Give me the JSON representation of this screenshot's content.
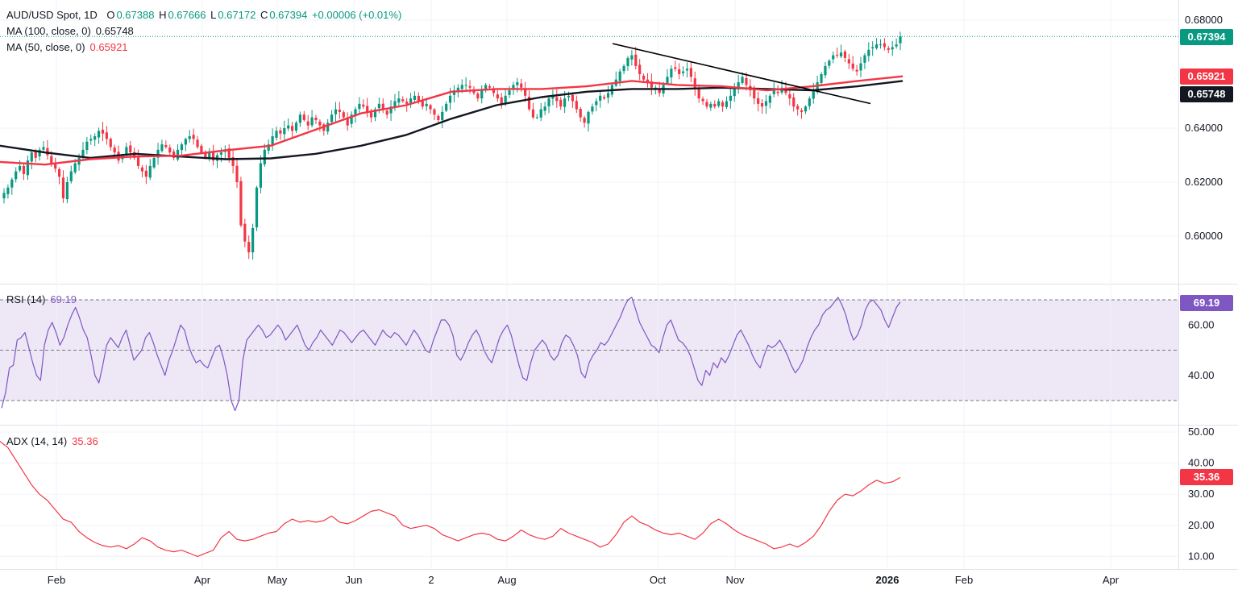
{
  "header": {
    "symbol": "AUD/USD Spot, 1D",
    "o_label": "O",
    "o": "0.67388",
    "h_label": "H",
    "h": "0.67666",
    "l_label": "L",
    "l": "0.67172",
    "c_label": "C",
    "c": "0.67394",
    "change": "+0.00006 (+0.01%)"
  },
  "indicators": {
    "ma100_label": "MA (100, close, 0)",
    "ma100_value": "0.65748",
    "ma50_label": "MA (50, close, 0)",
    "ma50_value": "0.65921",
    "rsi_label": "RSI (14)",
    "rsi_value": "69.19",
    "adx_label": "ADX (14, 14)",
    "adx_value": "35.36"
  },
  "badges": {
    "price": "0.67394",
    "ma50": "0.65921",
    "ma100": "0.65748",
    "rsi": "69.19",
    "adx": "35.36"
  },
  "colors": {
    "up": "#089981",
    "down": "#f23645",
    "ma50": "#f23645",
    "ma100": "#131722",
    "rsi": "#7e57c2",
    "rsi_band": "#ede7f6",
    "adx": "#f23645",
    "trendline": "#000000"
  },
  "chart_data": [
    {
      "type": "candlestick",
      "title": "AUD/USD Spot, 1D",
      "x_tick_labels": [
        "Feb",
        "Apr",
        "May",
        "Jun",
        "2",
        "Aug",
        "Oct",
        "Nov",
        "2026",
        "Feb",
        "Apr"
      ],
      "y_tick_labels": [
        "0.68000",
        "0.64000",
        "0.62000",
        "0.60000"
      ],
      "ylim": [
        0.588,
        0.6855
      ],
      "close_series": [
        0.616,
        0.618,
        0.621,
        0.624,
        0.626,
        0.623,
        0.628,
        0.631,
        0.629,
        0.632,
        0.633,
        0.63,
        0.627,
        0.625,
        0.622,
        0.614,
        0.62,
        0.624,
        0.627,
        0.629,
        0.632,
        0.635,
        0.636,
        0.637,
        0.639,
        0.638,
        0.636,
        0.633,
        0.631,
        0.628,
        0.63,
        0.633,
        0.631,
        0.629,
        0.626,
        0.624,
        0.622,
        0.626,
        0.629,
        0.632,
        0.634,
        0.633,
        0.631,
        0.629,
        0.632,
        0.634,
        0.636,
        0.637,
        0.636,
        0.633,
        0.631,
        0.629,
        0.631,
        0.628,
        0.63,
        0.631,
        0.632,
        0.629,
        0.626,
        0.62,
        0.604,
        0.598,
        0.594,
        0.603,
        0.618,
        0.627,
        0.632,
        0.634,
        0.637,
        0.639,
        0.638,
        0.64,
        0.641,
        0.639,
        0.642,
        0.645,
        0.643,
        0.641,
        0.644,
        0.643,
        0.641,
        0.639,
        0.642,
        0.645,
        0.647,
        0.646,
        0.644,
        0.641,
        0.645,
        0.647,
        0.649,
        0.648,
        0.646,
        0.644,
        0.647,
        0.649,
        0.647,
        0.645,
        0.648,
        0.65,
        0.651,
        0.65,
        0.649,
        0.651,
        0.652,
        0.65,
        0.648,
        0.649,
        0.647,
        0.645,
        0.643,
        0.646,
        0.649,
        0.652,
        0.654,
        0.655,
        0.656,
        0.656,
        0.655,
        0.653,
        0.651,
        0.654,
        0.656,
        0.655,
        0.653,
        0.651,
        0.649,
        0.652,
        0.654,
        0.656,
        0.657,
        0.655,
        0.652,
        0.647,
        0.644,
        0.644,
        0.647,
        0.648,
        0.651,
        0.652,
        0.65,
        0.648,
        0.651,
        0.652,
        0.65,
        0.647,
        0.644,
        0.642,
        0.646,
        0.648,
        0.65,
        0.652,
        0.651,
        0.653,
        0.656,
        0.658,
        0.661,
        0.663,
        0.666,
        0.667,
        0.663,
        0.66,
        0.658,
        0.657,
        0.655,
        0.655,
        0.653,
        0.656,
        0.659,
        0.662,
        0.662,
        0.66,
        0.661,
        0.662,
        0.659,
        0.655,
        0.651,
        0.65,
        0.648,
        0.649,
        0.648,
        0.65,
        0.648,
        0.65,
        0.652,
        0.655,
        0.657,
        0.659,
        0.656,
        0.654,
        0.651,
        0.649,
        0.648,
        0.65,
        0.652,
        0.654,
        0.653,
        0.655,
        0.653,
        0.651,
        0.648,
        0.647,
        0.646,
        0.648,
        0.651,
        0.654,
        0.657,
        0.66,
        0.663,
        0.665,
        0.667,
        0.667,
        0.668,
        0.666,
        0.664,
        0.662,
        0.661,
        0.664,
        0.667,
        0.669,
        0.67,
        0.671,
        0.671,
        0.67,
        0.669,
        0.67,
        0.671,
        0.674
      ],
      "ma50": [
        0.6275,
        0.6265,
        0.6285,
        0.6295,
        0.6298,
        0.6318,
        0.6335,
        0.6395,
        0.6455,
        0.6485,
        0.6535,
        0.6545,
        0.6545,
        0.6555,
        0.6575,
        0.656,
        0.6555,
        0.654,
        0.6555,
        0.6575,
        0.6592
      ],
      "ma100": [
        0.6335,
        0.631,
        0.629,
        0.6305,
        0.6295,
        0.6285,
        0.6288,
        0.6305,
        0.6335,
        0.6375,
        0.6435,
        0.6485,
        0.6515,
        0.6535,
        0.6545,
        0.6545,
        0.655,
        0.6545,
        0.654,
        0.6555,
        0.6575
      ],
      "trendline": {
        "from": [
          0.6713
        ],
        "to": [
          0.6491
        ]
      }
    },
    {
      "type": "line",
      "title": "RSI (14)",
      "y_tick_labels": [
        "60.00",
        "40.00"
      ],
      "levels": [
        70,
        50,
        30
      ],
      "values": [
        27,
        33,
        43,
        44,
        54,
        55,
        57,
        51,
        45,
        40,
        38,
        52,
        58,
        61,
        57,
        52,
        55,
        60,
        64,
        67,
        63,
        58,
        55,
        48,
        40,
        37,
        44,
        52,
        55,
        53,
        51,
        55,
        58,
        52,
        46,
        48,
        50,
        55,
        57,
        53,
        48,
        44,
        40,
        46,
        50,
        55,
        60,
        58,
        52,
        48,
        45,
        46,
        44,
        43,
        47,
        51,
        52,
        47,
        40,
        30,
        26,
        30,
        46,
        54,
        56,
        58,
        60,
        58,
        55,
        56,
        58,
        60,
        58,
        54,
        56,
        58,
        60,
        56,
        52,
        50,
        53,
        55,
        58,
        56,
        54,
        52,
        55,
        58,
        57,
        55,
        53,
        55,
        57,
        58,
        56,
        54,
        52,
        55,
        58,
        56,
        55,
        57,
        56,
        54,
        52,
        55,
        58,
        56,
        53,
        50,
        49,
        54,
        58,
        62,
        62,
        60,
        56,
        48,
        46,
        49,
        53,
        56,
        58,
        55,
        50,
        47,
        45,
        50,
        55,
        58,
        60,
        56,
        50,
        44,
        39,
        38,
        45,
        50,
        52,
        54,
        52,
        48,
        46,
        48,
        53,
        56,
        55,
        52,
        48,
        41,
        39,
        45,
        48,
        50,
        53,
        52,
        54,
        57,
        60,
        63,
        67,
        70,
        71,
        66,
        61,
        58,
        55,
        52,
        51,
        49,
        55,
        60,
        62,
        58,
        54,
        53,
        51,
        48,
        43,
        38,
        36,
        42,
        40,
        45,
        43,
        47,
        45,
        48,
        52,
        56,
        58,
        55,
        52,
        48,
        45,
        43,
        48,
        52,
        51,
        52,
        54,
        51,
        48,
        44,
        41,
        43,
        46,
        51,
        55,
        58,
        60,
        64,
        66,
        67,
        69,
        71,
        68,
        64,
        58,
        54,
        56,
        60,
        66,
        69,
        70,
        68,
        66,
        62,
        59,
        63,
        67,
        69.19
      ]
    },
    {
      "type": "line",
      "title": "ADX (14, 14)",
      "y_tick_labels": [
        "50.00",
        "40.00",
        "30.00",
        "20.00",
        "10.00"
      ],
      "values": [
        47,
        45,
        41,
        37,
        33,
        30,
        28,
        25,
        22,
        21,
        18,
        16,
        14.5,
        13.5,
        13,
        13.5,
        12.5,
        14,
        16,
        15,
        13,
        12,
        11.5,
        12,
        11,
        10,
        11,
        12,
        16,
        18,
        15.5,
        15,
        15.5,
        16.5,
        17.5,
        18,
        20.5,
        22,
        21,
        21.5,
        21,
        21.5,
        23,
        21,
        20.5,
        21.5,
        23,
        24.5,
        25,
        24,
        23,
        20,
        19,
        19.5,
        20,
        19,
        17,
        16,
        15,
        16,
        17,
        17.5,
        17,
        15.5,
        15,
        16.5,
        18.5,
        17,
        16,
        15.5,
        16.5,
        19,
        17.5,
        16.5,
        15.5,
        14.5,
        13,
        14,
        17,
        21,
        23,
        21,
        20,
        18.5,
        17.5,
        17,
        17.5,
        16.5,
        15.5,
        17.5,
        20.5,
        22,
        20.5,
        18.5,
        17,
        16,
        15,
        14,
        12.5,
        13,
        14,
        13,
        14.5,
        16.5,
        20,
        24.5,
        28,
        30,
        29.5,
        31,
        33,
        34.5,
        33.5,
        34,
        35.36
      ]
    }
  ]
}
